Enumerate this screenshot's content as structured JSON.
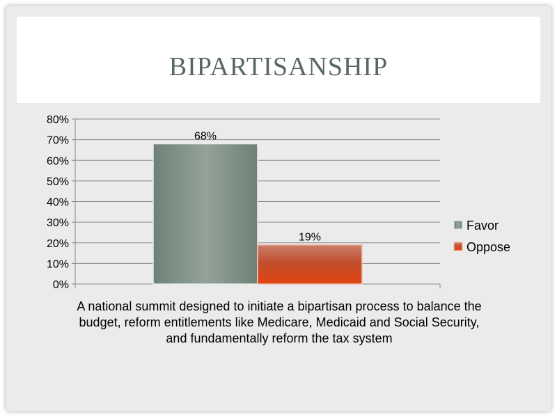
{
  "slide": {
    "title": "BIPARTISANSHIP"
  },
  "chart_data": {
    "type": "bar",
    "title": "BIPARTISANSHIP",
    "xlabel": "A national summit designed to initiate a bipartisan process to balance the budget, reform entitlements like Medicare, Medicaid and Social Security, and fundamentally reform the tax system",
    "ylabel": "",
    "categories": [
      "A national summit designed to initiate a bipartisan process to balance the budget, reform entitlements like Medicare, Medicaid and Social Security, and fundamentally reform the tax system"
    ],
    "series": [
      {
        "name": "Favor",
        "values": [
          68
        ],
        "label": "68%",
        "color": "#7d8e84"
      },
      {
        "name": "Oppose",
        "values": [
          19
        ],
        "label": "19%",
        "color": "#c8462a"
      }
    ],
    "ylim": [
      0,
      80
    ],
    "yticks": [
      "0%",
      "10%",
      "20%",
      "30%",
      "40%",
      "50%",
      "60%",
      "70%",
      "80%"
    ],
    "grid": true,
    "legend": "right"
  }
}
